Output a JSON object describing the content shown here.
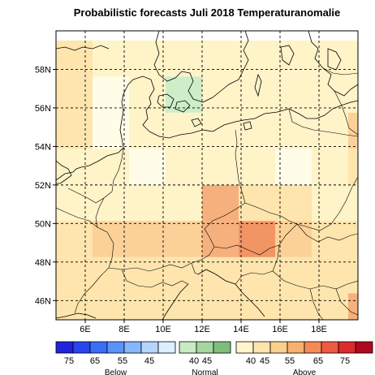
{
  "title": "Probabilistic forecasts Juli 2018 Temperaturanomalie",
  "axes": {
    "lon_range": [
      4.5,
      20
    ],
    "lat_range": [
      45,
      60
    ],
    "lon_ticks": [
      {
        "value": 6,
        "label": "6E"
      },
      {
        "value": 8,
        "label": "8E"
      },
      {
        "value": 10,
        "label": "10E"
      },
      {
        "value": 12,
        "label": "12E"
      },
      {
        "value": 14,
        "label": "14E"
      },
      {
        "value": 16,
        "label": "16E"
      },
      {
        "value": 18,
        "label": "18E"
      }
    ],
    "lat_ticks": [
      {
        "value": 46,
        "label": "46N"
      },
      {
        "value": 48,
        "label": "48N"
      },
      {
        "value": 50,
        "label": "50N"
      },
      {
        "value": 52,
        "label": "52N"
      },
      {
        "value": 54,
        "label": "54N"
      },
      {
        "value": 56,
        "label": "56N"
      },
      {
        "value": 58,
        "label": "58N"
      }
    ],
    "gridlines": "dashed"
  },
  "cell_colors": {
    "n": "#fffde8",
    "a40": "#fff3c8",
    "a45": "#fde5ad",
    "a50": "#fbd198",
    "a55": "#f6b07e",
    "a60": "#f29565",
    "norm": "#cdeec8"
  },
  "grid": {
    "lon_start": 4.5,
    "lat_start": 59.5,
    "cell_deg": 1.875,
    "rows": [
      [
        "a45",
        "a40",
        "a40",
        "a40",
        "a40",
        "a40",
        "a40",
        "a40",
        "a40"
      ],
      [
        "a45",
        "n",
        "a40",
        "norm",
        "a40",
        "a40",
        "a40",
        "a40",
        "a40"
      ],
      [
        "a45",
        "n",
        "a40",
        "a40",
        "a40",
        "a40",
        "a40",
        "a40",
        "a50"
      ],
      [
        "a40",
        "a40",
        "n",
        "a40",
        "a40",
        "a40",
        "n",
        "a40",
        "a45"
      ],
      [
        "a40",
        "a40",
        "a40",
        "a40",
        "a55",
        "a45",
        "a45",
        "a40",
        "a40"
      ],
      [
        "a45",
        "a50",
        "a50",
        "a50",
        "a55",
        "a60",
        "a50",
        "a45",
        "a45"
      ],
      [
        "a45",
        "a45",
        "a45",
        "a45",
        "a45",
        "a45",
        "a45",
        "a45",
        "a45"
      ],
      [
        "a45",
        "a45",
        "a45",
        "a45",
        "a45",
        "a45",
        "a45",
        "a45",
        "a55"
      ]
    ]
  },
  "legend": {
    "below": {
      "colors": [
        "#2222dd",
        "#2a44ee",
        "#3a6ef6",
        "#5a94fb",
        "#86b6fc",
        "#b4d6fd",
        "#ddeefe"
      ],
      "ticks": [
        "75",
        "65",
        "55",
        "45"
      ],
      "caption": "Below"
    },
    "normal": {
      "colors": [
        "#c9ebc4",
        "#a5d6a0",
        "#7dbf7a"
      ],
      "ticks": [
        "40",
        "45"
      ],
      "caption": "Normal"
    },
    "above": {
      "colors": [
        "#fff5cc",
        "#fde5ad",
        "#fbcf8e",
        "#f8b070",
        "#f58a56",
        "#ee5a42",
        "#dd2a30",
        "#b0081e"
      ],
      "ticks": [
        "40",
        "45",
        "55",
        "65",
        "75"
      ],
      "caption": "Above"
    }
  },
  "map_colors": {
    "coast": "#000000",
    "grid": "#000000"
  }
}
